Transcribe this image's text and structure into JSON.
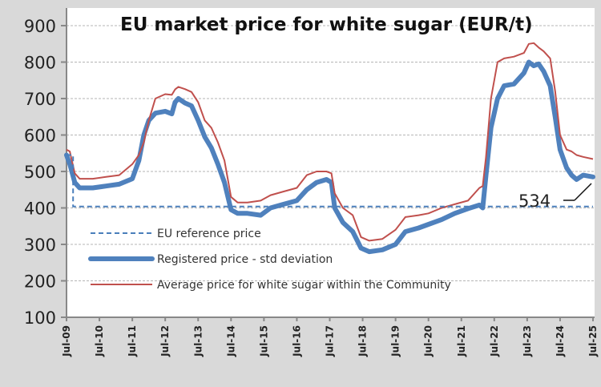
{
  "chart_data": {
    "type": "line",
    "title": "EU market price for white sugar (EUR/t)",
    "xlabel": "",
    "ylabel": "",
    "ylim": [
      100,
      900
    ],
    "yticks": [
      100,
      200,
      300,
      400,
      500,
      600,
      700,
      800,
      900
    ],
    "xlim_years_from_start": [
      0,
      16
    ],
    "xticks": [
      "Jul-09",
      "Jul-10",
      "Jul-11",
      "Jul-12",
      "Jul-13",
      "Jul-14",
      "Jul-15",
      "Jul-16",
      "Jul-17",
      "Jul-18",
      "Jul-19",
      "Jul-20",
      "Jul-21",
      "Jul-22",
      "Jul-23",
      "Jul-24",
      "Jul-25"
    ],
    "grid": true,
    "legend_position": "bottom-left",
    "x_unit": "years since Jul-09",
    "series": [
      {
        "name": "EU reference price",
        "style": "dashed",
        "color": "#4a7ebb",
        "x": [
          0,
          0.2,
          0.2,
          16
        ],
        "values": [
          545,
          545,
          404,
          404
        ]
      },
      {
        "name": "Registered price - std deviation",
        "style": "thick",
        "color": "#4f81bd",
        "x": [
          0,
          0.1,
          0.25,
          0.4,
          0.8,
          1.2,
          1.6,
          2.0,
          2.2,
          2.35,
          2.5,
          2.7,
          3.0,
          3.2,
          3.3,
          3.4,
          3.6,
          3.8,
          4.0,
          4.2,
          4.4,
          4.6,
          4.8,
          5.0,
          5.2,
          5.5,
          5.9,
          6.2,
          6.6,
          7.0,
          7.3,
          7.6,
          7.9,
          8.05,
          8.15,
          8.4,
          8.7,
          8.95,
          9.2,
          9.6,
          10.0,
          10.3,
          10.7,
          11.0,
          11.4,
          11.8,
          12.2,
          12.55,
          12.65,
          12.75,
          12.9,
          13.1,
          13.3,
          13.6,
          13.9,
          14.05,
          14.2,
          14.35,
          14.5,
          14.7,
          14.85,
          15.0,
          15.2,
          15.35,
          15.5,
          15.7,
          16.0
        ],
        "values": [
          545,
          520,
          470,
          455,
          455,
          460,
          465,
          480,
          530,
          600,
          640,
          660,
          665,
          658,
          690,
          700,
          688,
          680,
          640,
          595,
          565,
          520,
          470,
          395,
          385,
          385,
          380,
          400,
          410,
          420,
          450,
          470,
          478,
          470,
          400,
          360,
          335,
          290,
          280,
          285,
          300,
          335,
          345,
          355,
          368,
          385,
          398,
          408,
          400,
          490,
          620,
          700,
          735,
          740,
          770,
          800,
          790,
          795,
          775,
          735,
          650,
          560,
          510,
          490,
          478,
          490,
          485
        ]
      },
      {
        "name": "Average price for white sugar within the Community",
        "style": "thin",
        "color": "#c0504d",
        "x": [
          0,
          0.1,
          0.25,
          0.4,
          0.8,
          1.2,
          1.6,
          2.0,
          2.2,
          2.35,
          2.5,
          2.7,
          3.0,
          3.2,
          3.3,
          3.4,
          3.6,
          3.8,
          4.0,
          4.2,
          4.4,
          4.6,
          4.8,
          5.0,
          5.2,
          5.5,
          5.9,
          6.2,
          6.6,
          7.0,
          7.3,
          7.6,
          7.9,
          8.05,
          8.15,
          8.4,
          8.7,
          8.95,
          9.2,
          9.6,
          10.0,
          10.3,
          10.7,
          11.0,
          11.4,
          11.8,
          12.2,
          12.55,
          12.65,
          12.75,
          12.9,
          13.1,
          13.3,
          13.6,
          13.9,
          14.05,
          14.2,
          14.35,
          14.5,
          14.7,
          14.85,
          15.0,
          15.2,
          15.35,
          15.5,
          15.7,
          16.0
        ],
        "values": [
          560,
          555,
          495,
          480,
          480,
          485,
          490,
          520,
          545,
          580,
          640,
          700,
          712,
          710,
          725,
          732,
          726,
          718,
          690,
          640,
          620,
          580,
          530,
          430,
          415,
          415,
          420,
          435,
          445,
          455,
          490,
          500,
          500,
          495,
          440,
          400,
          380,
          320,
          310,
          315,
          340,
          375,
          380,
          385,
          400,
          410,
          420,
          455,
          460,
          540,
          700,
          800,
          810,
          815,
          825,
          850,
          852,
          840,
          830,
          810,
          720,
          600,
          560,
          555,
          545,
          540,
          534
        ]
      }
    ],
    "annotations": [
      {
        "text": "534",
        "target_series": "Average price for white sugar within the Community",
        "x": 16,
        "value": 534
      }
    ]
  }
}
